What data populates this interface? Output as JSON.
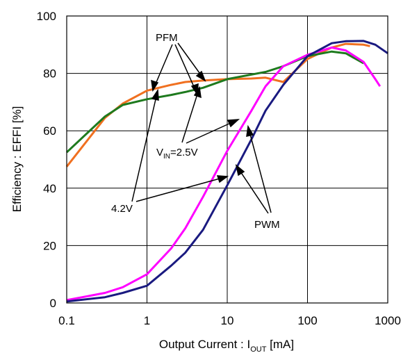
{
  "chart_data": {
    "type": "line",
    "xlabel": {
      "main": "Output Current : I",
      "sub": "OUT",
      "tail": " [mA]"
    },
    "ylabel": "Efficiency : EFFI [%]",
    "x_scale": "log",
    "xlim": [
      0.1,
      1000
    ],
    "ylim": [
      0,
      100
    ],
    "x_ticks": [
      {
        "value": 0.1,
        "label": "0.1"
      },
      {
        "value": 1,
        "label": "1"
      },
      {
        "value": 10,
        "label": "10"
      },
      {
        "value": 100,
        "label": "100"
      },
      {
        "value": 1000,
        "label": "1000"
      }
    ],
    "y_ticks": [
      {
        "value": 0,
        "label": "0"
      },
      {
        "value": 20,
        "label": "20"
      },
      {
        "value": 40,
        "label": "40"
      },
      {
        "value": 60,
        "label": "60"
      },
      {
        "value": 80,
        "label": "80"
      },
      {
        "value": 100,
        "label": "100"
      }
    ],
    "grid": true,
    "series": [
      {
        "color": "#F07020",
        "points": [
          [
            0.1,
            47.5
          ],
          [
            0.3,
            64.5
          ],
          [
            0.5,
            69.5
          ],
          [
            1,
            74
          ],
          [
            2,
            76
          ],
          [
            3,
            77
          ],
          [
            5,
            77.5
          ],
          [
            10,
            78
          ],
          [
            20,
            78.2
          ],
          [
            30,
            78.5
          ],
          [
            50,
            77
          ],
          [
            100,
            85
          ],
          [
            200,
            89
          ],
          [
            300,
            90.3
          ],
          [
            500,
            90
          ],
          [
            600,
            89.5
          ]
        ]
      },
      {
        "color": "#1E7A1E",
        "points": [
          [
            0.1,
            52.5
          ],
          [
            0.3,
            65
          ],
          [
            0.5,
            69
          ],
          [
            1,
            71
          ],
          [
            2,
            72.5
          ],
          [
            3,
            73.5
          ],
          [
            5,
            75
          ],
          [
            10,
            78
          ],
          [
            30,
            80.5
          ],
          [
            50,
            82.5
          ],
          [
            100,
            86
          ],
          [
            200,
            87.6
          ],
          [
            300,
            87
          ],
          [
            500,
            83.5
          ]
        ]
      },
      {
        "color": "#FF00FF",
        "points": [
          [
            0.1,
            1
          ],
          [
            0.3,
            3.5
          ],
          [
            0.5,
            5.5
          ],
          [
            1,
            10
          ],
          [
            2,
            19
          ],
          [
            3,
            26
          ],
          [
            5,
            37
          ],
          [
            10,
            53
          ],
          [
            20,
            67
          ],
          [
            30,
            75.5
          ],
          [
            50,
            82.5
          ],
          [
            100,
            86.5
          ],
          [
            200,
            89
          ],
          [
            300,
            88
          ],
          [
            500,
            84
          ],
          [
            700,
            78
          ],
          [
            800,
            75.5
          ]
        ]
      },
      {
        "color": "#1A1A80",
        "points": [
          [
            0.1,
            0.5
          ],
          [
            0.3,
            2
          ],
          [
            0.5,
            3.5
          ],
          [
            1,
            6
          ],
          [
            2,
            13
          ],
          [
            3,
            17.5
          ],
          [
            5,
            25.5
          ],
          [
            10,
            41
          ],
          [
            20,
            57
          ],
          [
            30,
            67
          ],
          [
            50,
            76
          ],
          [
            100,
            86
          ],
          [
            200,
            90.5
          ],
          [
            300,
            91.2
          ],
          [
            500,
            91.3
          ],
          [
            700,
            90
          ],
          [
            1000,
            87
          ]
        ]
      }
    ],
    "annotations": [
      {
        "name": "pfm",
        "text": "PFM"
      },
      {
        "name": "vin",
        "main": "V",
        "sub": "IN",
        "tail": "=2.5V"
      },
      {
        "name": "v42",
        "text": "4.2V"
      },
      {
        "name": "pwm",
        "text": "PWM"
      }
    ]
  }
}
